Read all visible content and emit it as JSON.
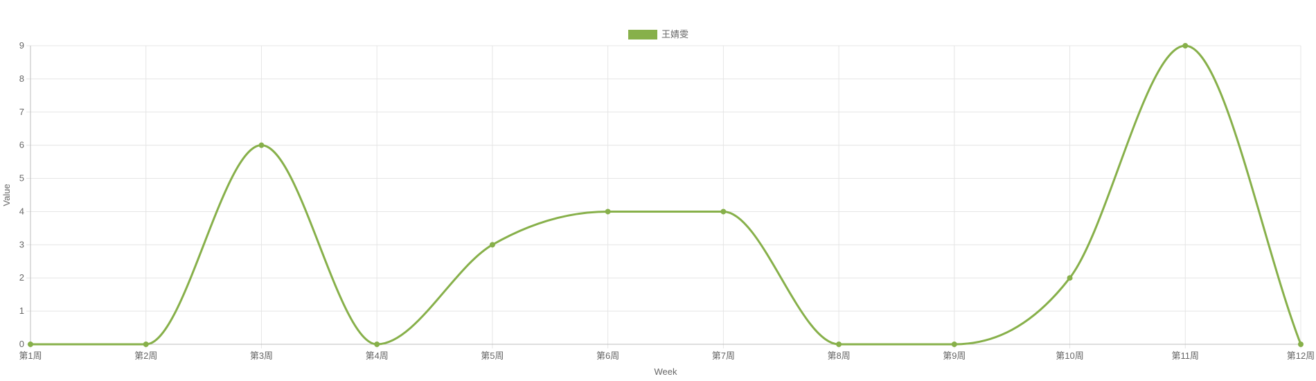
{
  "chart_data": {
    "type": "line",
    "title": "",
    "xlabel": "Week",
    "ylabel": "Value",
    "categories": [
      "第1周",
      "第2周",
      "第3周",
      "第4周",
      "第5周",
      "第6周",
      "第7周",
      "第8周",
      "第9周",
      "第10周",
      "第11周",
      "第12周"
    ],
    "ylim": [
      0,
      9
    ],
    "yticks": [
      "0",
      "1",
      "2",
      "3",
      "4",
      "5",
      "6",
      "7",
      "8",
      "9"
    ],
    "grid": true,
    "legend_position": "top-center",
    "series": [
      {
        "name": "王婧雯",
        "color": "#87b04a",
        "values": [
          0,
          0,
          6,
          0,
          3,
          4,
          4,
          0,
          0,
          2,
          9,
          0
        ]
      }
    ]
  }
}
